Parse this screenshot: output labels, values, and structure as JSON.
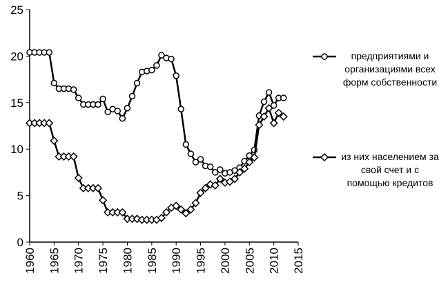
{
  "chart_data": {
    "type": "line",
    "x": [
      1960,
      1961,
      1962,
      1963,
      1964,
      1965,
      1966,
      1967,
      1968,
      1969,
      1970,
      1971,
      1972,
      1973,
      1974,
      1975,
      1976,
      1977,
      1978,
      1979,
      1980,
      1981,
      1982,
      1983,
      1984,
      1985,
      1986,
      1987,
      1988,
      1989,
      1990,
      1991,
      1992,
      1993,
      1994,
      1995,
      1996,
      1997,
      1998,
      1999,
      2000,
      2001,
      2002,
      2003,
      2004,
      2005,
      2006,
      2007,
      2008,
      2009,
      2010,
      2011,
      2012
    ],
    "series": [
      {
        "name": "предприятиями и организациями всех форм собственности",
        "color": "#000000",
        "marker": "circle",
        "values": [
          20.4,
          20.4,
          20.4,
          20.4,
          20.4,
          17.1,
          16.5,
          16.5,
          16.5,
          16.4,
          15.5,
          14.8,
          14.8,
          14.8,
          14.8,
          15.4,
          14.0,
          14.3,
          14.1,
          13.3,
          14.4,
          15.7,
          17.1,
          18.3,
          18.4,
          18.5,
          19.0,
          20.1,
          19.8,
          19.7,
          17.9,
          14.3,
          10.5,
          9.5,
          8.6,
          8.9,
          8.2,
          8.1,
          7.5,
          7.8,
          7.4,
          7.5,
          7.7,
          8.0,
          8.7,
          9.3,
          9.9,
          13.6,
          15.1,
          16.1,
          14.7,
          15.5,
          15.5
        ]
      },
      {
        "name": "из них населением за свой счет и с помощью кредитов",
        "color": "#000000",
        "marker": "diamond",
        "values": [
          12.8,
          12.8,
          12.8,
          12.8,
          12.8,
          10.9,
          9.2,
          9.2,
          9.2,
          9.2,
          6.9,
          5.8,
          5.8,
          5.8,
          5.8,
          4.5,
          3.2,
          3.2,
          3.2,
          3.2,
          2.5,
          2.5,
          2.5,
          2.4,
          2.4,
          2.4,
          2.4,
          2.6,
          3.2,
          3.7,
          3.9,
          3.5,
          3.1,
          3.5,
          4.2,
          5.3,
          5.8,
          6.2,
          6.1,
          6.8,
          6.4,
          6.5,
          6.8,
          7.5,
          7.9,
          8.6,
          9.1,
          12.6,
          13.5,
          14.4,
          12.8,
          13.9,
          13.5
        ]
      }
    ],
    "xlim": [
      1960,
      2015
    ],
    "xticks": [
      1960,
      1965,
      1970,
      1975,
      1980,
      1985,
      1990,
      1995,
      2000,
      2005,
      2010,
      2015
    ],
    "ylim": [
      0,
      25
    ],
    "yticks": [
      0,
      5,
      10,
      15,
      20,
      25
    ],
    "grid": false,
    "legend": "right"
  }
}
